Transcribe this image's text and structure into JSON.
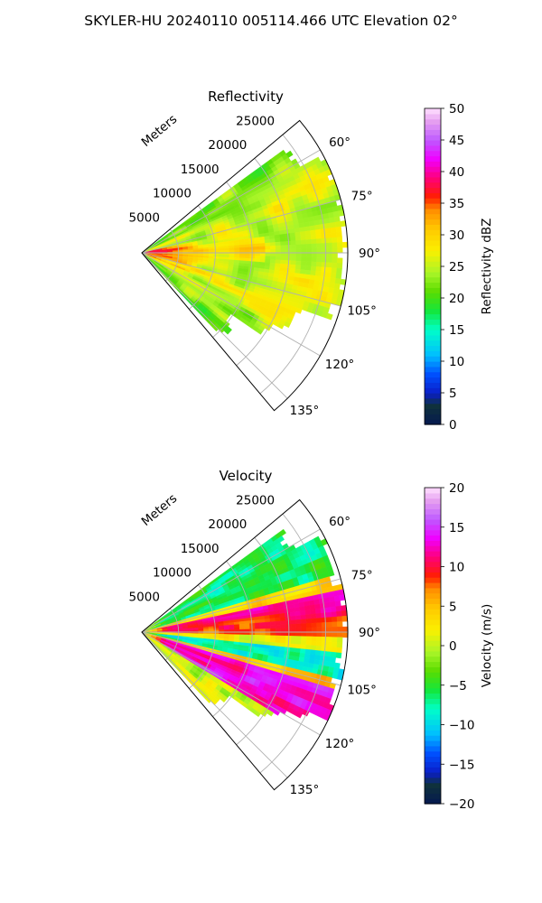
{
  "figure": {
    "title": "SKYLER-HU  20240110  005114.466 UTC Elevation 02°"
  },
  "chart_data": [
    {
      "type": "heatmap",
      "subtype": "polar-sector (PPI radar sweep)",
      "title": "Reflectivity",
      "radial_label": "Meters",
      "radial_ticks": [
        5000,
        10000,
        15000,
        20000,
        25000
      ],
      "radial_tick_labels": [
        "5000",
        "10000",
        "15000",
        "20000",
        "25000"
      ],
      "r_max": 28000,
      "theta_min": 50,
      "theta_max": 140,
      "theta_ticks": [
        60,
        75,
        90,
        105,
        120,
        135
      ],
      "theta_tick_labels": [
        "60°",
        "75°",
        "90°",
        "105°",
        "120°",
        "135°"
      ],
      "grid": true,
      "colorbar": {
        "label": "Reflectivity dBZ",
        "vmin": 0,
        "vmax": 50,
        "ticks": [
          0,
          5,
          10,
          15,
          20,
          25,
          30,
          35,
          40,
          45,
          50
        ],
        "tick_labels": [
          "0",
          "5",
          "10",
          "15",
          "20",
          "25",
          "30",
          "35",
          "40",
          "45",
          "50"
        ]
      },
      "field_description": [
        {
          "theta_range": [
            55,
            140
          ],
          "r_range": [
            0,
            28000
          ],
          "value_range": [
            20,
            30
          ],
          "dominant": "yellow 25-30 dBZ"
        },
        {
          "theta_range": [
            80,
            110
          ],
          "r_range": [
            0,
            9000
          ],
          "value_range": [
            35,
            42
          ],
          "dominant": "red/magenta near radar"
        }
      ]
    },
    {
      "type": "heatmap",
      "subtype": "polar-sector (PPI radar sweep)",
      "title": "Velocity",
      "radial_label": "Meters",
      "radial_ticks": [
        5000,
        10000,
        15000,
        20000,
        25000
      ],
      "radial_tick_labels": [
        "5000",
        "10000",
        "15000",
        "20000",
        "25000"
      ],
      "r_max": 28000,
      "theta_min": 50,
      "theta_max": 140,
      "theta_ticks": [
        60,
        75,
        90,
        105,
        120,
        135
      ],
      "theta_tick_labels": [
        "60°",
        "75°",
        "90°",
        "105°",
        "120°",
        "135°"
      ],
      "grid": true,
      "colorbar": {
        "label": "Velocity (m/s)",
        "vmin": -20,
        "vmax": 20,
        "ticks": [
          -20,
          -15,
          -10,
          -5,
          0,
          5,
          10,
          15,
          20
        ],
        "tick_labels": [
          "−20",
          "−15",
          "−10",
          "−5",
          "0",
          "5",
          "10",
          "15",
          "20"
        ]
      },
      "field_description": [
        {
          "theta_range": [
            55,
            75
          ],
          "value_range": [
            -8,
            -3
          ],
          "dominant": "green"
        },
        {
          "theta_range": [
            75,
            95
          ],
          "value_range": [
            8,
            18
          ],
          "dominant": "red/magenta"
        },
        {
          "theta_range": [
            95,
            105
          ],
          "value_range": [
            -12,
            -5
          ],
          "dominant": "cyan/green"
        },
        {
          "theta_range": [
            105,
            125
          ],
          "value_range": [
            5,
            15
          ],
          "dominant": "magenta/red"
        }
      ]
    }
  ]
}
